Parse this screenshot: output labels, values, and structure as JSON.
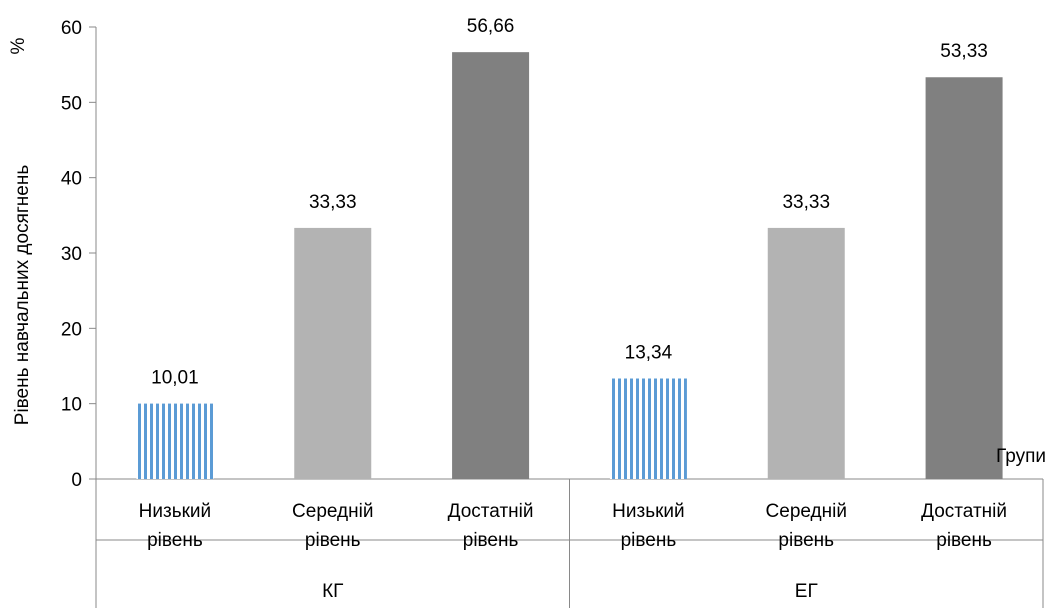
{
  "chart_data": {
    "type": "bar",
    "ylabel": "Рівень навчальних досягнень",
    "yunit": "%",
    "xlabel": "Групи",
    "ylim": [
      0,
      60
    ],
    "yticks": [
      0,
      10,
      20,
      30,
      40,
      50,
      60
    ],
    "grid": false,
    "legend": "none",
    "groups": [
      {
        "name": "КГ",
        "categories": [
          {
            "line1": "Низький",
            "line2": "рівень"
          },
          {
            "line1": "Середній",
            "line2": "рівень"
          },
          {
            "line1": "Достатній",
            "line2": "рівень"
          }
        ],
        "values": [
          10.01,
          33.33,
          56.66
        ],
        "value_labels": [
          "10,01",
          "33,33",
          "56,66"
        ]
      },
      {
        "name": "ЕГ",
        "categories": [
          {
            "line1": "Низький",
            "line2": "рівень"
          },
          {
            "line1": "Середній",
            "line2": "рівень"
          },
          {
            "line1": "Достатній",
            "line2": "рівень"
          }
        ],
        "values": [
          13.34,
          33.33,
          53.33
        ],
        "value_labels": [
          "13,34",
          "33,33",
          "53,33"
        ]
      }
    ],
    "bar_styles": [
      {
        "fill": "#5b9bd5",
        "pattern": "vertical-stripes"
      },
      {
        "fill": "#b3b3b3",
        "pattern": "solid"
      },
      {
        "fill": "#808080",
        "pattern": "solid"
      }
    ],
    "colors": {
      "axis": "#898989",
      "stripe": "#5b9bd5"
    }
  }
}
